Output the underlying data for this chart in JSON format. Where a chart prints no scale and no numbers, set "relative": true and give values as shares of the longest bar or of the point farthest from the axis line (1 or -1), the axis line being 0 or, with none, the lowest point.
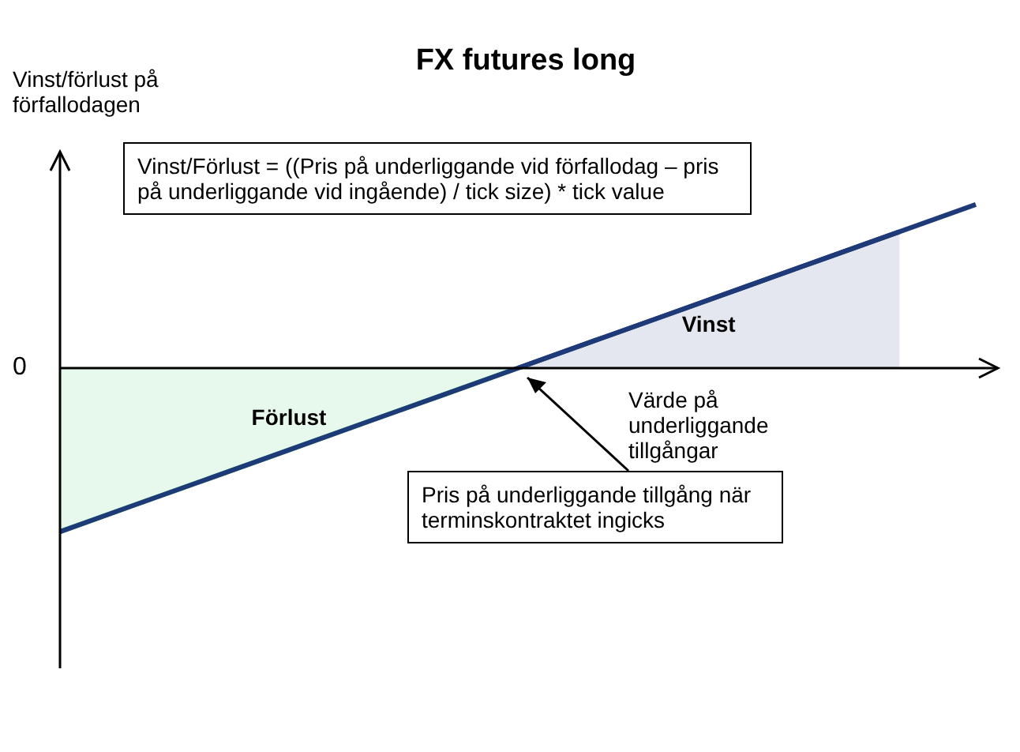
{
  "chart_data": {
    "type": "line",
    "title": "FX futures long",
    "ylabel": "Vinst/förlust på förfallodagen",
    "xlabel": "Värde på underliggande tillgångar",
    "relative": true,
    "categories": [
      null,
      null,
      null,
      null,
      null,
      null,
      null,
      null,
      null,
      null,
      null,
      null,
      null
    ],
    "series": [
      {
        "type": "area",
        "name": "Förlust",
        "color": "#33cc66",
        "values": [
          -1,
          -0.833,
          -0.667,
          -0.5,
          -0.333,
          -0.167,
          0,
          null,
          null,
          null,
          null,
          null,
          null
        ]
      },
      {
        "type": "area",
        "name": "Vinst",
        "color": "#1f3a78",
        "values": [
          null,
          null,
          null,
          null,
          null,
          null,
          0,
          0.167,
          0.333,
          0.5,
          0.667,
          0.833,
          null
        ]
      },
      {
        "color": "#1f3a78",
        "values": [
          -1,
          -0.833,
          -0.667,
          -0.5,
          -0.333,
          -0.167,
          0,
          0.167,
          0.333,
          0.5,
          0.667,
          0.833,
          1
        ]
      }
    ],
    "annotations": [
      "0",
      "Vinst/Förlust = ((Pris på underliggande vid förfallodag – pris på underliggande vid ingående) / tick size) * tick value",
      "Pris på underliggande tillgång när terminskontraktet ingicks"
    ],
    "legend": false,
    "marker": "none"
  }
}
